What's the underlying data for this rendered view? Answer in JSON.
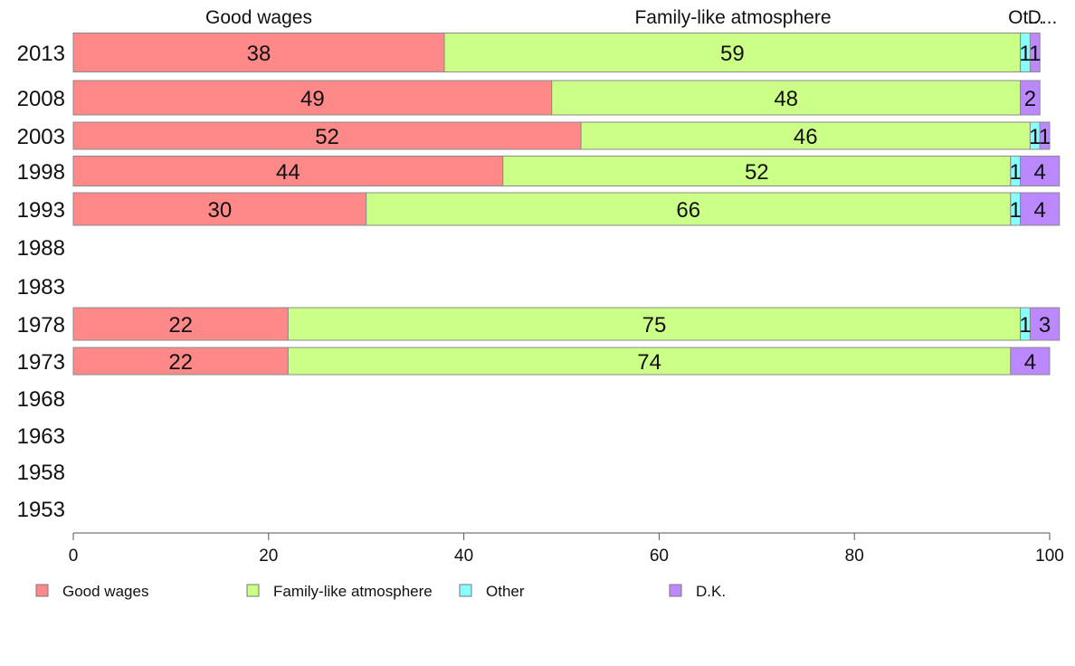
{
  "chart_data": {
    "type": "bar",
    "orientation": "horizontal",
    "stacked": true,
    "categories": [
      "2013",
      "2008",
      "2003",
      "1998",
      "1993",
      "1988",
      "1983",
      "1978",
      "1973",
      "1968",
      "1963",
      "1958",
      "1953"
    ],
    "series": [
      {
        "name": "Good wages",
        "color": "#ff8888",
        "values": [
          38,
          49,
          52,
          44,
          30,
          null,
          null,
          22,
          22,
          null,
          null,
          null,
          null
        ]
      },
      {
        "name": "Family-like atmosphere",
        "color": "#ccff88",
        "values": [
          59,
          48,
          46,
          52,
          66,
          null,
          null,
          75,
          74,
          null,
          null,
          null,
          null
        ]
      },
      {
        "name": "Other",
        "color": "#88ffff",
        "values": [
          1,
          0,
          1,
          1,
          1,
          null,
          null,
          1,
          0,
          null,
          null,
          null,
          null
        ]
      },
      {
        "name": "D.K.",
        "color": "#bb88ff",
        "values": [
          1,
          2,
          1,
          4,
          4,
          null,
          null,
          3,
          4,
          null,
          null,
          null,
          null
        ]
      }
    ],
    "top_labels": [
      "Good wages",
      "Family-like atmosphere",
      "Other",
      "D.K."
    ],
    "top_labels_display": [
      "Good wages",
      "Family-like atmosphere",
      "Ot...",
      "D..."
    ],
    "xlim": [
      0,
      100
    ],
    "xticks": [
      0,
      20,
      40,
      60,
      80,
      100
    ],
    "legend_position": "bottom",
    "grid": false
  }
}
